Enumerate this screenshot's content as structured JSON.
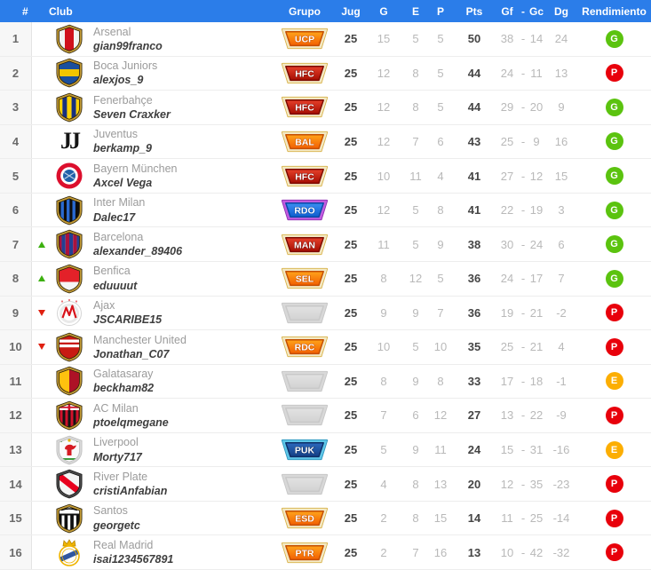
{
  "colors": {
    "header_bg": "#2b7de9",
    "header_text": "#ffffff",
    "row_border": "#ededed",
    "num_col_bg": "#f7f7f7",
    "num_col_border": "#e4e4e4",
    "club_name": "#9b9b9b",
    "username": "#3e3e3e",
    "stat_muted": "#b9b9b9",
    "stat_strong": "#454545",
    "movement_up": "#3cb00f",
    "movement_down": "#e02010"
  },
  "rend_colors": {
    "G": "#5bc30f",
    "P": "#e8000b",
    "E": "#fcae02"
  },
  "crest_border": {
    "outer": "#2a2008",
    "gold": "#c39b35"
  },
  "badge_schemes": {
    "orange": {
      "rim": "#f3e8c3",
      "rim_edge": "#d8b24a",
      "body1": "#ffa41b",
      "body2": "#f25f02",
      "body_edge": "#c44e00"
    },
    "red": {
      "rim": "#f3e8c3",
      "rim_edge": "#d8b24a",
      "body1": "#e6402a",
      "body2": "#a50d02",
      "body_edge": "#7d0a00"
    },
    "blue_purple": {
      "rim": "#c15ce0",
      "rim_edge": "#8e2fb0",
      "body1": "#3b8ef2",
      "body2": "#0d5ecf",
      "body_edge": "#0a4aa6"
    },
    "navy": {
      "rim": "#5fc6e8",
      "rim_edge": "#2e95bd",
      "body1": "#2c69bd",
      "body2": "#143f85",
      "body_edge": "#0e2f66"
    },
    "empty": {
      "rim": "#d8d8d8",
      "rim_edge": "#c6c6c6",
      "body1": "#e2e2e2",
      "body2": "#d2d2d2",
      "body_edge": "#c9c9c9"
    }
  },
  "table": {
    "columns": {
      "num": "#",
      "club": "Club",
      "grupo": "Grupo",
      "jug": "Jug",
      "g": "G",
      "e": "E",
      "p": "P",
      "pts": "Pts",
      "gf": "Gf",
      "dash": "-",
      "gc": "Gc",
      "dg": "Dg",
      "rend": "Rendimiento"
    },
    "rows": [
      {
        "pos": 1,
        "mov": null,
        "club": "Arsenal",
        "user": "gian99franco",
        "crest": {
          "type": "arsenal",
          "c": [
            "#f2f2f2",
            "#d0101c"
          ]
        },
        "group": {
          "label": "UCP",
          "scheme": "orange"
        },
        "jug": 25,
        "g": 15,
        "e": 5,
        "p": 5,
        "pts": 50,
        "gf": 38,
        "gc": 14,
        "dg": 24,
        "rend": "G"
      },
      {
        "pos": 2,
        "mov": null,
        "club": "Boca Juniors",
        "user": "alexjos_9",
        "crest": {
          "type": "boca",
          "c": [
            "#1a4f9c",
            "#f2c500"
          ]
        },
        "group": {
          "label": "HFC",
          "scheme": "red"
        },
        "jug": 25,
        "g": 12,
        "e": 8,
        "p": 5,
        "pts": 44,
        "gf": 24,
        "gc": 11,
        "dg": 13,
        "rend": "P"
      },
      {
        "pos": 3,
        "mov": null,
        "club": "Fenerbahçe",
        "user": "Seven Craxker",
        "crest": {
          "type": "fener",
          "c": [
            "#ffd200",
            "#17307e"
          ]
        },
        "group": {
          "label": "HFC",
          "scheme": "red"
        },
        "jug": 25,
        "g": 12,
        "e": 8,
        "p": 5,
        "pts": 44,
        "gf": 29,
        "gc": 20,
        "dg": 9,
        "rend": "G"
      },
      {
        "pos": 4,
        "mov": null,
        "club": "Juventus",
        "user": "berkamp_9",
        "crest": {
          "type": "juve",
          "c": [
            "#ffffff",
            "#141414"
          ]
        },
        "group": {
          "label": "BAL",
          "scheme": "orange"
        },
        "jug": 25,
        "g": 12,
        "e": 7,
        "p": 6,
        "pts": 43,
        "gf": 25,
        "gc": 9,
        "dg": 16,
        "rend": "G"
      },
      {
        "pos": 5,
        "mov": null,
        "club": "Bayern München",
        "user": "Axcel Vega",
        "crest": {
          "type": "bayern",
          "c": [
            "#dc0f2d",
            "#ffffff",
            "#2060a8"
          ]
        },
        "group": {
          "label": "HFC",
          "scheme": "red"
        },
        "jug": 25,
        "g": 10,
        "e": 11,
        "p": 4,
        "pts": 41,
        "gf": 27,
        "gc": 12,
        "dg": 15,
        "rend": "G"
      },
      {
        "pos": 6,
        "mov": null,
        "club": "Inter Milan",
        "user": "Dalec17",
        "crest": {
          "type": "inter",
          "c": [
            "#0d0d0d",
            "#2a6ad0"
          ]
        },
        "group": {
          "label": "RDO",
          "scheme": "blue_purple"
        },
        "jug": 25,
        "g": 12,
        "e": 5,
        "p": 8,
        "pts": 41,
        "gf": 22,
        "gc": 19,
        "dg": 3,
        "rend": "G"
      },
      {
        "pos": 7,
        "mov": "up",
        "club": "Barcelona",
        "user": "alexander_89406",
        "crest": {
          "type": "barca",
          "c": [
            "#a8123e",
            "#234093"
          ]
        },
        "group": {
          "label": "MAN",
          "scheme": "red"
        },
        "jug": 25,
        "g": 11,
        "e": 5,
        "p": 9,
        "pts": 38,
        "gf": 30,
        "gc": 24,
        "dg": 6,
        "rend": "G"
      },
      {
        "pos": 8,
        "mov": "up",
        "club": "Benfica",
        "user": "eduuuut",
        "crest": {
          "type": "benfica",
          "c": [
            "#e32129",
            "#f5f5f5"
          ]
        },
        "group": {
          "label": "SEL",
          "scheme": "orange"
        },
        "jug": 25,
        "g": 8,
        "e": 12,
        "p": 5,
        "pts": 36,
        "gf": 24,
        "gc": 17,
        "dg": 7,
        "rend": "G"
      },
      {
        "pos": 9,
        "mov": "down",
        "club": "Ajax",
        "user": "JSCARIBE15",
        "crest": {
          "type": "ajax",
          "c": [
            "#ffffff",
            "#d8131b"
          ]
        },
        "group": null,
        "jug": 25,
        "g": 9,
        "e": 9,
        "p": 7,
        "pts": 36,
        "gf": 19,
        "gc": 21,
        "dg": -2,
        "rend": "P"
      },
      {
        "pos": 10,
        "mov": "down",
        "club": "Manchester United",
        "user": "Jonathan_C07",
        "crest": {
          "type": "manu",
          "c": [
            "#c81a13",
            "#ffffff"
          ]
        },
        "group": {
          "label": "RDC",
          "scheme": "orange"
        },
        "jug": 25,
        "g": 10,
        "e": 5,
        "p": 10,
        "pts": 35,
        "gf": 25,
        "gc": 21,
        "dg": 4,
        "rend": "P"
      },
      {
        "pos": 11,
        "mov": null,
        "club": "Galatasaray",
        "user": "beckham82",
        "crest": {
          "type": "gala",
          "c": [
            "#ffc20e",
            "#ae1226"
          ]
        },
        "group": null,
        "jug": 25,
        "g": 8,
        "e": 9,
        "p": 8,
        "pts": 33,
        "gf": 17,
        "gc": 18,
        "dg": -1,
        "rend": "E"
      },
      {
        "pos": 12,
        "mov": null,
        "club": "AC Milan",
        "user": "ptoelqmegane",
        "crest": {
          "type": "milan",
          "c": [
            "#141414",
            "#d1122b",
            "#ffffff"
          ]
        },
        "group": null,
        "jug": 25,
        "g": 7,
        "e": 6,
        "p": 12,
        "pts": 27,
        "gf": 13,
        "gc": 22,
        "dg": -9,
        "rend": "P"
      },
      {
        "pos": 13,
        "mov": null,
        "club": "Liverpool",
        "user": "Morty717",
        "crest": {
          "type": "liverpool",
          "c": [
            "#fafafa",
            "#d61a22",
            "#3f9b3f",
            "#e0b100"
          ]
        },
        "group": {
          "label": "PUK",
          "scheme": "navy"
        },
        "jug": 25,
        "g": 5,
        "e": 9,
        "p": 11,
        "pts": 24,
        "gf": 15,
        "gc": 31,
        "dg": -16,
        "rend": "E"
      },
      {
        "pos": 14,
        "mov": null,
        "club": "River Plate",
        "user": "cristiAnfabian",
        "crest": {
          "type": "river",
          "c": [
            "#f4f4f4",
            "#e8001e",
            "#1f1f1f"
          ]
        },
        "group": null,
        "jug": 25,
        "g": 4,
        "e": 8,
        "p": 13,
        "pts": 20,
        "gf": 12,
        "gc": 35,
        "dg": -23,
        "rend": "P"
      },
      {
        "pos": 15,
        "mov": null,
        "club": "Santos",
        "user": "georgetc",
        "crest": {
          "type": "santos",
          "c": [
            "#101010",
            "#ffffff"
          ]
        },
        "group": {
          "label": "ESD",
          "scheme": "orange"
        },
        "jug": 25,
        "g": 2,
        "e": 8,
        "p": 15,
        "pts": 14,
        "gf": 11,
        "gc": 25,
        "dg": -14,
        "rend": "P"
      },
      {
        "pos": 16,
        "mov": null,
        "club": "Real Madrid",
        "user": "isai1234567891",
        "crest": {
          "type": "madrid",
          "c": [
            "#fdfdfd",
            "#f0b400",
            "#3056a0"
          ]
        },
        "group": {
          "label": "PTR",
          "scheme": "orange"
        },
        "jug": 25,
        "g": 2,
        "e": 7,
        "p": 16,
        "pts": 13,
        "gf": 10,
        "gc": 42,
        "dg": -32,
        "rend": "P"
      }
    ]
  }
}
